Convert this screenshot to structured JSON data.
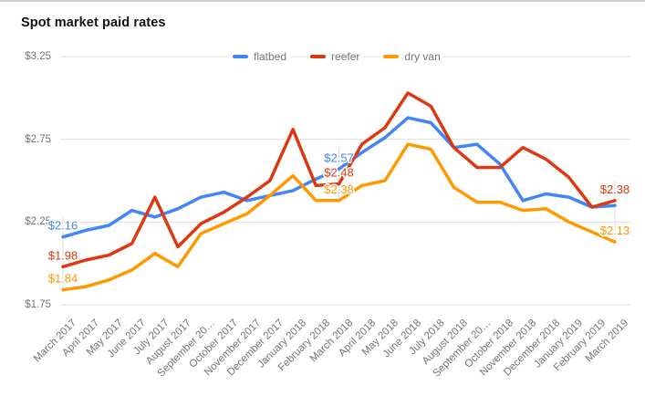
{
  "page": {
    "title": "Spot market paid rates"
  },
  "legend": {
    "items": [
      {
        "label": "flatbed",
        "color": "#4285F4"
      },
      {
        "label": "reefer",
        "color": "#DC3912"
      },
      {
        "label": "dry van",
        "color": "#FF9900"
      }
    ]
  },
  "y_axis": {
    "ticks": [
      {
        "label": "$3.25",
        "value": 3.25
      },
      {
        "label": "$2.75",
        "value": 2.75
      },
      {
        "label": "$2.25",
        "value": 2.25
      },
      {
        "label": "$1.75",
        "value": 1.75
      }
    ]
  },
  "chart_data": {
    "type": "line",
    "title": "Spot market paid rates",
    "categories": [
      "March 2017",
      "April 2017",
      "May 2017",
      "June 2017",
      "July 2017",
      "August 2017",
      "September 2017",
      "October 2017",
      "November 2017",
      "December 2017",
      "January 2018",
      "February 2018",
      "March 2018",
      "April 2018",
      "May 2018",
      "June 2018",
      "July 2018",
      "August 2018",
      "September 2018",
      "October 2018",
      "November 2018",
      "December 2018",
      "January 2019",
      "February 2019",
      "March 2019"
    ],
    "x_display": [
      "March 2017",
      "April 2017",
      "May 2017",
      "June 2017",
      "July 2017",
      "August 2017",
      "September 20…",
      "October 2017",
      "November 2017",
      "December 2017",
      "January 2018",
      "February 2018",
      "March 2018",
      "April 2018",
      "May 2018",
      "June 2018",
      "July 2018",
      "August 2018",
      "September 20…",
      "October 2018",
      "November 2018",
      "December 2018",
      "January 2019",
      "February 2019",
      "March 2019"
    ],
    "series": [
      {
        "name": "flatbed",
        "color": "#4285F4",
        "values": [
          2.16,
          2.2,
          2.23,
          2.32,
          2.28,
          2.33,
          2.4,
          2.43,
          2.38,
          2.41,
          2.44,
          2.51,
          2.57,
          2.67,
          2.76,
          2.88,
          2.85,
          2.7,
          2.72,
          2.6,
          2.38,
          2.42,
          2.4,
          2.34,
          2.35
        ]
      },
      {
        "name": "reefer",
        "color": "#DC3912",
        "values": [
          1.98,
          2.02,
          2.05,
          2.12,
          2.4,
          2.1,
          2.24,
          2.31,
          2.4,
          2.5,
          2.81,
          2.47,
          2.48,
          2.72,
          2.82,
          3.03,
          2.95,
          2.7,
          2.58,
          2.58,
          2.7,
          2.63,
          2.52,
          2.34,
          2.38
        ]
      },
      {
        "name": "dry van",
        "color": "#FF9900",
        "values": [
          1.84,
          1.86,
          1.9,
          1.96,
          2.06,
          1.98,
          2.18,
          2.24,
          2.3,
          2.41,
          2.53,
          2.38,
          2.38,
          2.47,
          2.5,
          2.72,
          2.69,
          2.46,
          2.37,
          2.37,
          2.32,
          2.33,
          2.25,
          2.19,
          2.13
        ]
      }
    ],
    "ylim": [
      1.75,
      3.25
    ],
    "yticks": [
      "$3.25",
      "$2.75",
      "$2.25",
      "$1.75"
    ],
    "xlabel": "",
    "ylabel": "",
    "grid": true,
    "legend_position": "top",
    "annotations": [
      {
        "series": "flatbed",
        "category": "March 2017",
        "text": "$2.16"
      },
      {
        "series": "reefer",
        "category": "March 2017",
        "text": "$1.98"
      },
      {
        "series": "dry van",
        "category": "March 2017",
        "text": "$1.84"
      },
      {
        "series": "flatbed",
        "category": "March 2018",
        "text": "$2.57"
      },
      {
        "series": "reefer",
        "category": "March 2018",
        "text": "$2.48"
      },
      {
        "series": "dry van",
        "category": "March 2018",
        "text": "$2.38"
      },
      {
        "series": "reefer",
        "category": "March 2019",
        "text": "$2.38"
      },
      {
        "series": "dry van",
        "category": "March 2019",
        "text": "$2.13"
      }
    ]
  }
}
